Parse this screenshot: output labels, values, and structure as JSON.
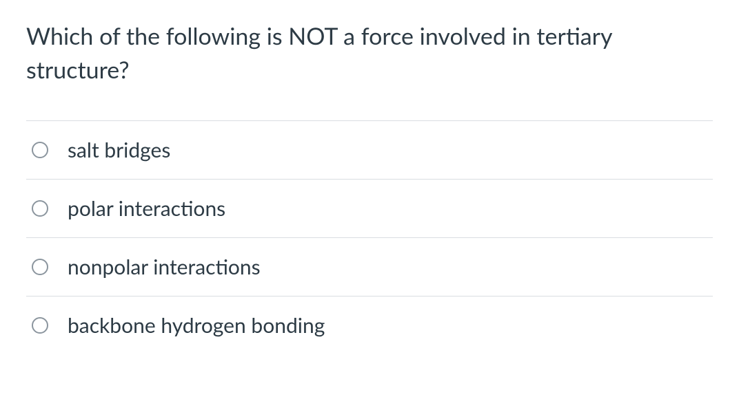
{
  "question": {
    "prompt": "Which of the following is NOT a force involved in tertiary structure?",
    "options": [
      {
        "label": "salt bridges"
      },
      {
        "label": "polar interactions"
      },
      {
        "label": "nonpolar interactions"
      },
      {
        "label": "backbone hydrogen bonding"
      }
    ]
  },
  "style": {
    "text_color": "#2d3b45",
    "divider_color": "#d9dde1",
    "radio_border_color": "#8b959e",
    "background_color": "#ffffff",
    "question_fontsize": 34,
    "option_fontsize": 30
  }
}
